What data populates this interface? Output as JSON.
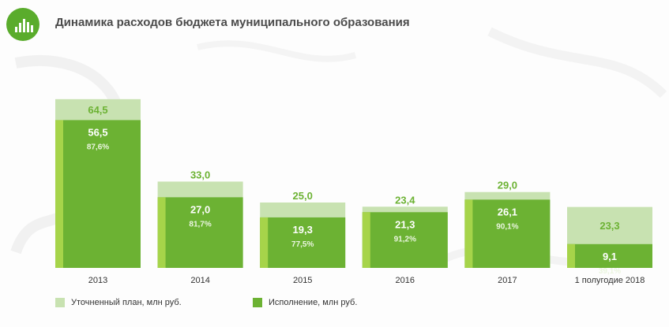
{
  "header": {
    "title": "Динамика расходов бюджета муниципального образования",
    "icon": "bar-chart-icon"
  },
  "colors": {
    "plan": "#c8e2b1",
    "execution": "#6cb233",
    "execution_light": "#a6d44a",
    "plan_label": "#6cb233",
    "logo": "#5aac2c"
  },
  "legend": {
    "plan_label": "Уточненный план, млн руб.",
    "execution_label": "Исполнение, млн руб."
  },
  "chart_data": {
    "type": "bar",
    "title": "Динамика расходов бюджета муниципального образования",
    "categories": [
      "2013",
      "2014",
      "2015",
      "2016",
      "2017",
      "1 полугодие 2018"
    ],
    "series": [
      {
        "name": "Уточненный план, млн руб.",
        "values": [
          64.5,
          33.0,
          25.0,
          23.4,
          29.0,
          23.3
        ],
        "labels": [
          "64,5",
          "33,0",
          "25,0",
          "23,4",
          "29,0",
          "23,3"
        ]
      },
      {
        "name": "Исполнение, млн руб.",
        "values": [
          56.5,
          27.0,
          19.3,
          21.3,
          26.1,
          9.1
        ],
        "labels": [
          "56,5",
          "27,0",
          "19,3",
          "21,3",
          "26,1",
          "9,1"
        ]
      }
    ],
    "percent_labels": [
      "87,6%",
      "81,7%",
      "77,5%",
      "91,2%",
      "90,1%",
      "39,1%"
    ],
    "legend_position": "bottom-left",
    "grid": false
  }
}
